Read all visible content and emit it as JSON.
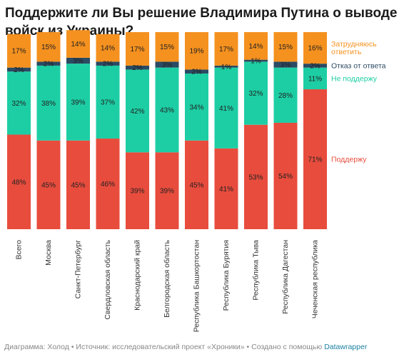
{
  "title": "Поддержите ли Вы решение Владимира Путина о выводе войск из Украины?",
  "footer": {
    "text": "Диаграмма: Холод • Источник: исследовательский проект «Хроники» • Создано с помощью",
    "link": "Datawrapper"
  },
  "chart_data": {
    "type": "bar",
    "stacked": true,
    "orientation": "vertical",
    "ylim": [
      0,
      100
    ],
    "grid": false,
    "legend": "right, inline labels",
    "categories": [
      "Всего",
      "Москва",
      "Санкт-Петербург",
      "Свердловская область",
      "Краснодарский край",
      "Белгородская область",
      "Республика Башкортостан",
      "Республика Бурятия",
      "Республика Тыва",
      "Республика Дагестан",
      "Чеченская республика"
    ],
    "series": [
      {
        "name": "Поддержу",
        "color": "#e84c3d",
        "values": [
          48,
          45,
          45,
          46,
          39,
          39,
          45,
          41,
          53,
          54,
          71
        ]
      },
      {
        "name": "Не поддержу",
        "color": "#1dcea4",
        "values": [
          32,
          38,
          39,
          37,
          42,
          43,
          34,
          41,
          32,
          28,
          11
        ]
      },
      {
        "name": "Отказ от ответа",
        "color": "#2b4a63",
        "values": [
          2,
          2,
          3,
          2,
          2,
          3,
          2,
          1,
          1,
          3,
          2
        ]
      },
      {
        "name": "Затрудняюсь ответить",
        "color": "#f5911f",
        "values": [
          17,
          15,
          14,
          14,
          17,
          15,
          19,
          17,
          14,
          15,
          16
        ]
      }
    ],
    "legend_labels": {
      "Поддержу": [
        "Поддержу"
      ],
      "Не поддержу": [
        "Не поддержу"
      ],
      "Отказ от ответа": [
        "Отказ от ответа"
      ],
      "Затрудняюсь ответить": [
        "Затрудняюсь",
        "ответить"
      ]
    }
  }
}
